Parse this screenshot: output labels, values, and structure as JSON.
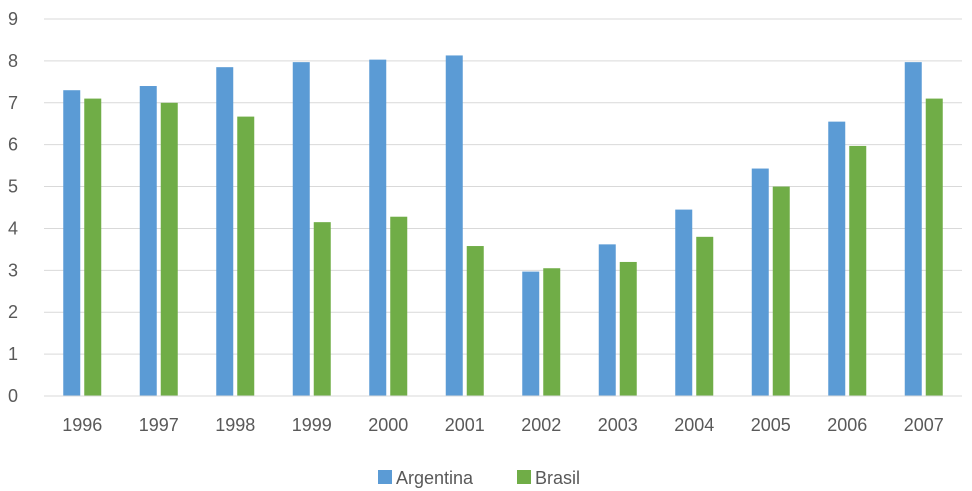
{
  "chart_data": {
    "type": "bar",
    "title": "",
    "xlabel": "",
    "ylabel": "",
    "categories": [
      "1996",
      "1997",
      "1998",
      "1999",
      "2000",
      "2001",
      "2002",
      "2003",
      "2004",
      "2005",
      "2006",
      "2007"
    ],
    "series": [
      {
        "name": "Argentina",
        "color": "#5b9bd5",
        "values": [
          7.3,
          7.4,
          7.85,
          7.97,
          8.03,
          8.13,
          2.97,
          3.62,
          4.45,
          5.43,
          6.55,
          7.97
        ]
      },
      {
        "name": "Brasil",
        "color": "#70ad47",
        "values": [
          7.1,
          7.0,
          6.67,
          4.15,
          4.28,
          3.58,
          3.05,
          3.2,
          3.8,
          5.0,
          5.97,
          7.1
        ]
      }
    ],
    "ylim": [
      0,
      9
    ],
    "yticks": [
      0,
      1,
      2,
      3,
      4,
      5,
      6,
      7,
      8,
      9
    ],
    "grid": true,
    "gridColor": "#d9d9d9",
    "legendPlacement": "bottom-center"
  }
}
